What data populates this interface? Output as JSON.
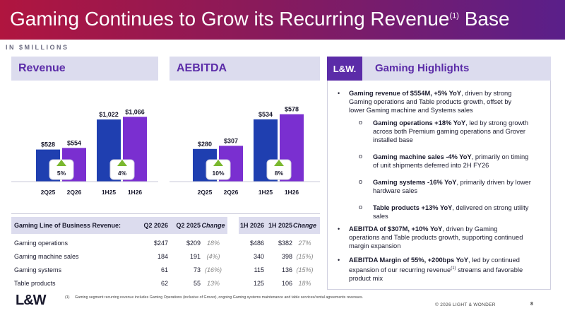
{
  "header": {
    "title": "Gaming Continues to Grow its Recurring Revenue",
    "title_sup": "(1)",
    "title_end": " Base",
    "units": "IN $MILLIONS"
  },
  "revenue_panel": {
    "label": "Revenue"
  },
  "aebitda_panel": {
    "label": "AEBITDA"
  },
  "chart_data": [
    {
      "type": "bar",
      "categories": [
        "2Q25",
        "2Q26",
        "1H25",
        "1H26"
      ],
      "values": [
        528,
        554,
        1022,
        1066
      ],
      "value_labels": [
        "$528",
        "$554",
        "$1,022",
        "$1,066"
      ],
      "growth_labels": [
        "5%",
        "4%"
      ]
    },
    {
      "type": "bar",
      "categories": [
        "2Q25",
        "2Q26",
        "1H25",
        "1H26"
      ],
      "values": [
        280,
        307,
        534,
        578
      ],
      "value_labels": [
        "$280",
        "$307",
        "$534",
        "$578"
      ],
      "growth_labels": [
        "10%",
        "8%"
      ]
    }
  ],
  "table": {
    "headers": [
      "Gaming Line of Business Revenue:",
      "Q2 2026",
      "Q2 2025",
      "Change",
      "1H 2026",
      "1H 2025",
      "Change"
    ],
    "rows": [
      [
        "Gaming operations",
        "$247",
        "$209",
        "18%",
        "$486",
        "$382",
        "27%"
      ],
      [
        "Gaming machine sales",
        "184",
        "191",
        "(4%)",
        "340",
        "398",
        "(15%)"
      ],
      [
        "Gaming systems",
        "61",
        "73",
        "(16%)",
        "115",
        "136",
        "(15%)"
      ],
      [
        "Table products",
        "62",
        "55",
        "13%",
        "125",
        "106",
        "18%"
      ]
    ]
  },
  "highlights": {
    "logo": "L&W.",
    "label": "Gaming Highlights",
    "b1_bold": "Gaming revenue of $554M, +5% YoY",
    "b1_l1": ", driven by strong",
    "b1_l2": "Gaming operations and Table products growth, offset by",
    "b1_l3": "lower Gaming machine and Systems sales",
    "s1_bold": "Gaming operations +18% YoY",
    "s1_l1": ", led by strong growth",
    "s1_l2": "across both Premium gaming operations and Grover",
    "s1_l3": "installed base",
    "s2_bold": "Gaming machine sales -4% YoY",
    "s2_l1": ", primarily on timing",
    "s2_l2": "of unit shipments deferred into 2H FY26",
    "s3_bold": "Gaming systems -16% YoY",
    "s3_l1": ", primarily driven by lower",
    "s3_l2": "hardware sales",
    "s4_bold": "Table products +13% YoY",
    "s4_l1": ", delivered on strong utility",
    "s4_l2": "sales",
    "b2_bold": "AEBITDA of $307M, +10% YoY",
    "b2_l1": ", driven by Gaming",
    "b2_l2": "operations and Table products growth, supporting continued",
    "b2_l3": "margin expansion",
    "b3_bold": "AEBITDA Margin of 55%, +200bps YoY",
    "b3_l1": ", led by continued",
    "b3_l2a": "expansion of our recurring revenue",
    "b3_sup": "(1)",
    "b3_l2b": " streams and favorable",
    "b3_l3": "product mix"
  },
  "footer": {
    "logo": "L&W",
    "footnote_num": "(1)",
    "footnote": "Gaming segment recurring revenue includes Gaming Operations (inclusive of Grover), ongoing Gaming systems maintenance and table services/rental agreements revenues.",
    "copyright": "© 2026 LIGHT & WONDER",
    "page": "8"
  },
  "colors": {
    "bar_prior": "#1f3fb0",
    "bar_current": "#7a2fd0",
    "growth": "#7ab82e",
    "accent": "#5b2ca8"
  }
}
